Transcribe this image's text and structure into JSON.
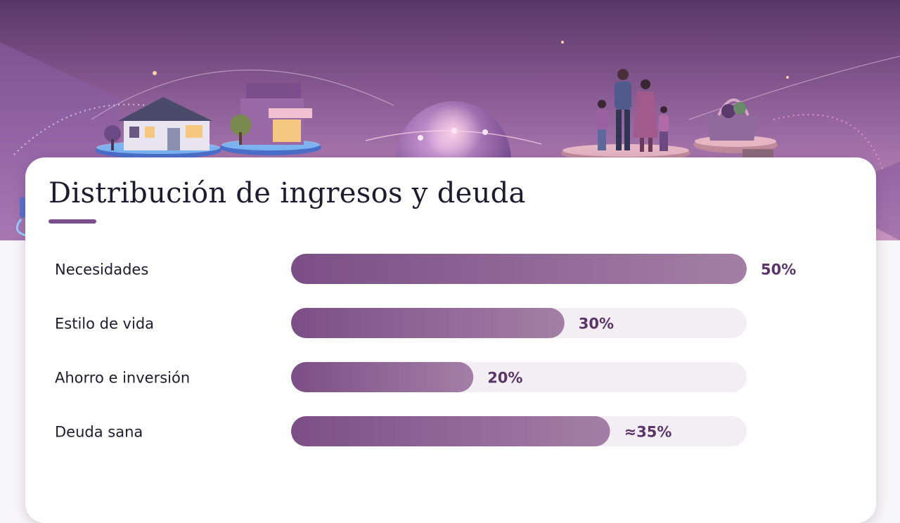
{
  "chart_data": {
    "type": "bar",
    "orientation": "horizontal",
    "title": "Distribución de ingresos y deuda",
    "categories": [
      "Necesidades",
      "Estilo de vida",
      "Ahorro e inversión",
      "Deuda sana"
    ],
    "values": [
      50,
      30,
      20,
      35
    ],
    "value_labels": [
      "50%",
      "30%",
      "20%",
      "≈35%"
    ],
    "xlim": [
      0,
      50
    ],
    "grid": false,
    "legend": "none"
  },
  "colors": {
    "bar_start": "#7b4f86",
    "bar_end": "#a37fa6",
    "track": "#f3eef4",
    "value_text": "#5a3568",
    "label_text": "#1f1b2e",
    "accent": "#7b4f8b"
  }
}
